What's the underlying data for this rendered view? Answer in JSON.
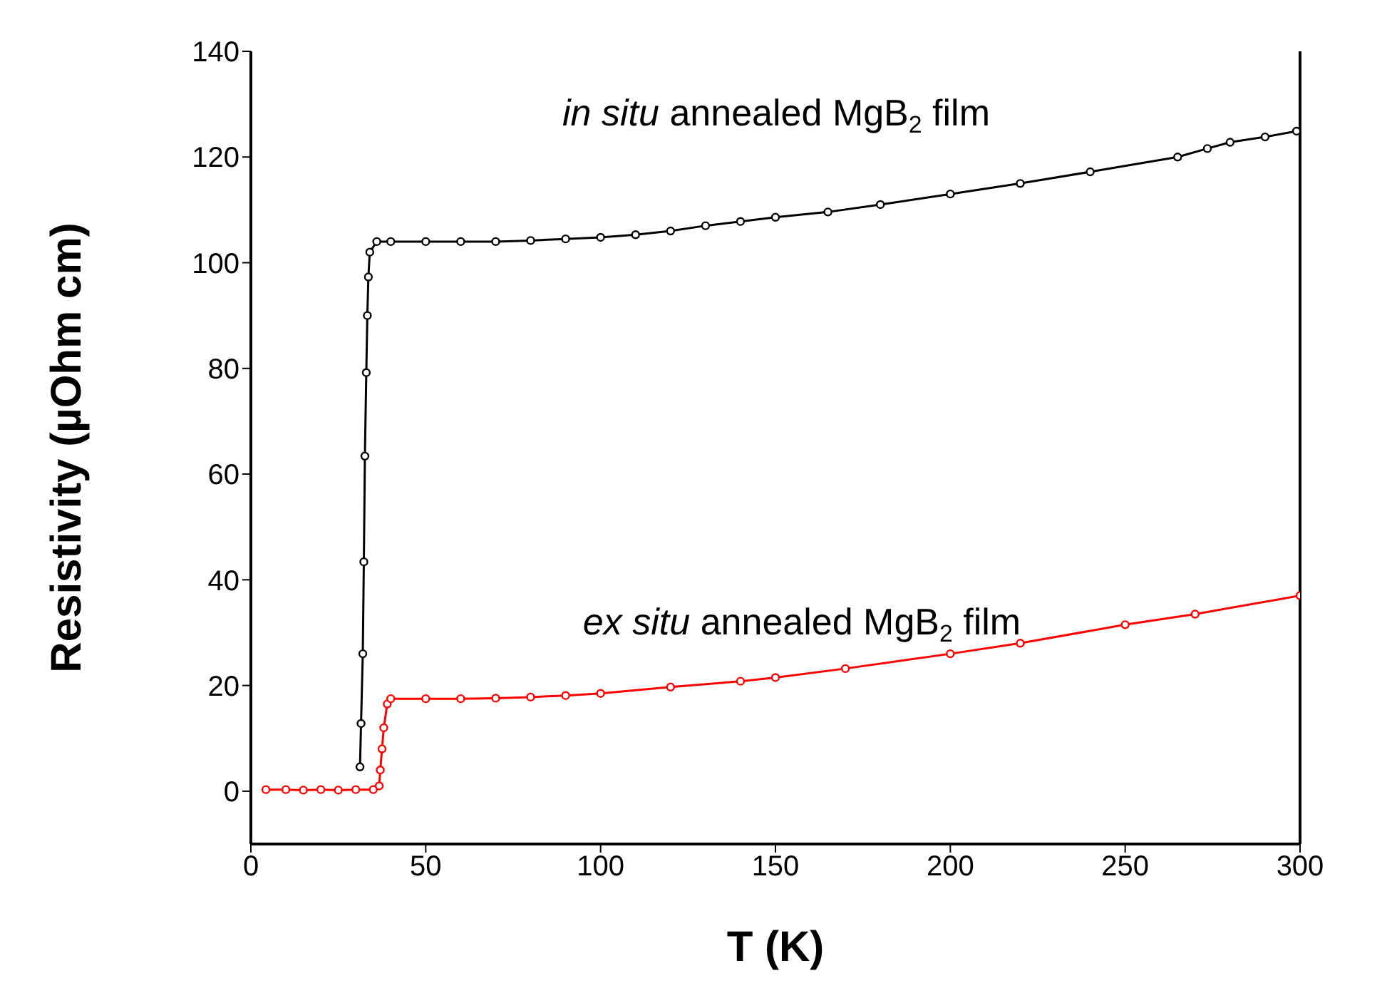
{
  "chart_data": {
    "type": "line",
    "xlabel": "T (K)",
    "ylabel": "Resistivity (µOhm cm)",
    "xlim": [
      0,
      300
    ],
    "xticks": [
      0,
      50,
      100,
      150,
      200,
      250,
      300
    ],
    "ylim": [
      -10,
      140
    ],
    "yticks": [
      0,
      20,
      40,
      60,
      80,
      100,
      120,
      140
    ],
    "marker": "circle",
    "line_style": "solid",
    "series": [
      {
        "name": "in situ annealed MgB$_{2}$ film",
        "color": "#000000",
        "x": [
          31.2,
          31.5,
          32,
          32.3,
          32.6,
          33,
          33.3,
          33.6,
          34,
          36,
          40,
          50,
          60,
          70,
          80,
          90,
          100,
          110,
          120,
          130,
          140,
          150,
          165,
          180,
          200,
          220,
          240,
          265,
          273.5,
          280,
          290,
          299
        ],
        "values": [
          4.6,
          12.8,
          26,
          43.4,
          63.4,
          79.2,
          90,
          97.3,
          102,
          104,
          104,
          104,
          104,
          104,
          104.2,
          104.5,
          104.8,
          105.3,
          106,
          107,
          107.8,
          108.6,
          109.6,
          111,
          113,
          115,
          117.2,
          120,
          121.6,
          122.8,
          123.8,
          124.9
        ]
      },
      {
        "name": "ex situ annealed MgB$_{2}$ film",
        "color": "#ff0000",
        "x": [
          4.3,
          10,
          15,
          20,
          25,
          30,
          35,
          36.7,
          37,
          37.5,
          38,
          39,
          40,
          50,
          60,
          70,
          80,
          90,
          100,
          120,
          140,
          150,
          170,
          200,
          220,
          250,
          270,
          300
        ],
        "values": [
          0.3,
          0.3,
          0.2,
          0.3,
          0.2,
          0.3,
          0.3,
          1,
          4,
          8,
          12,
          16.5,
          17.5,
          17.5,
          17.5,
          17.6,
          17.8,
          18.1,
          18.5,
          19.7,
          20.8,
          21.5,
          23.2,
          26,
          28,
          31.5,
          33.5,
          37
        ]
      }
    ]
  }
}
